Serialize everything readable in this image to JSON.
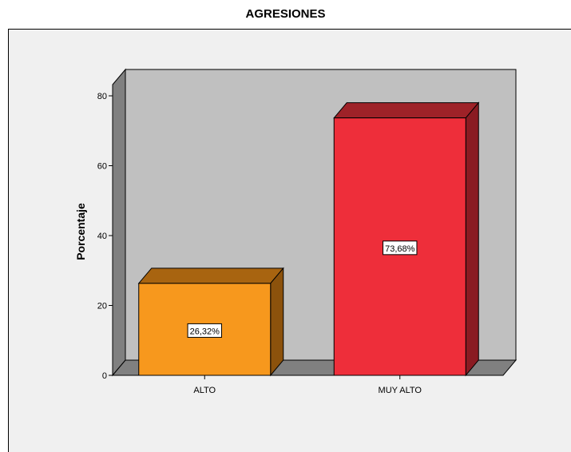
{
  "chart_data": {
    "type": "bar",
    "title": "AGRESIONES",
    "xlabel": "",
    "ylabel": "Porcentaje",
    "categories": [
      "ALTO",
      "MUY ALTO"
    ],
    "values": [
      26.32,
      73.68
    ],
    "data_labels": [
      "26,32%",
      "73,68%"
    ],
    "ylim": [
      0,
      80
    ],
    "yticks": [
      "0",
      "20",
      "40",
      "60",
      "80"
    ],
    "bar_colors": [
      "#f7981d",
      "#ee2e3a"
    ],
    "bar_side_colors": [
      "#8c520c",
      "#8a1b22"
    ],
    "bar_top_colors": [
      "#a86410",
      "#9e2228"
    ],
    "plot_background": "#c0c0c0",
    "grid": false,
    "legend": "none",
    "style": "3d"
  }
}
